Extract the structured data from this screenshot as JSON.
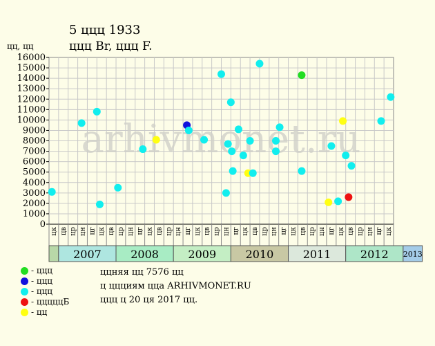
{
  "header": {
    "line1": "5 ццц 1933",
    "line2": "ццц Br, ццц F."
  },
  "watermark": "arhivmonet.ru",
  "legend": [
    {
      "label": "- ццц",
      "color": "#22dd22"
    },
    {
      "label": "- ццц",
      "color": "#1111dd"
    },
    {
      "label": "- ццц",
      "color": "#11eeee"
    },
    {
      "label": "- цццццБ",
      "color": "#ee1111"
    },
    {
      "label": "- цц",
      "color": "#ffff11"
    }
  ],
  "notes": [
    "ццняя цц 7576 цц",
    "ц ццциям ццa ARHIVMONET.RU",
    "ццц ц 20 ця 2017 цц."
  ],
  "chart_data": {
    "type": "scatter",
    "title": "5 ццц 1933",
    "subtitle": "ццц Br, ццц F.",
    "ylabel": "цц, цц",
    "ylim": [
      0,
      16000
    ],
    "yticks": [
      0,
      1000,
      2000,
      3000,
      4000,
      5000,
      6000,
      7000,
      8000,
      9000,
      10000,
      11000,
      12000,
      13000,
      14000,
      15000,
      16000
    ],
    "month_labels": [
      "цк",
      "цв",
      "цр",
      "цн",
      "цг",
      "цк",
      "цв",
      "цр",
      "цн",
      "цг",
      "цк",
      "цв",
      "цр",
      "цн",
      "цг",
      "цк",
      "цв",
      "цр",
      "цн",
      "цг",
      "цк",
      "цв",
      "цр",
      "цн",
      "цг",
      "цк",
      "цв",
      "цр",
      "цн",
      "цг",
      "цк",
      "цв",
      "цр",
      "цн",
      "цг",
      "цк"
    ],
    "years": [
      {
        "label": "",
        "span": 1,
        "color": "#b8d8a8"
      },
      {
        "label": "2007",
        "span": 6,
        "color": "#aee6e0"
      },
      {
        "label": "2008",
        "span": 6,
        "color": "#a8ecc4"
      },
      {
        "label": "2009",
        "span": 6,
        "color": "#c4eec4"
      },
      {
        "label": "2010",
        "span": 6,
        "color": "#c8c8a4"
      },
      {
        "label": "2011",
        "span": 6,
        "color": "#dce8dc"
      },
      {
        "label": "2012",
        "span": 6,
        "color": "#aee6c8"
      },
      {
        "label": "2013",
        "span": 2,
        "color": "#a4cce8"
      }
    ],
    "points": [
      {
        "x": 0.3,
        "y": 3100,
        "color": "#11eeee"
      },
      {
        "x": 3.4,
        "y": 9700,
        "color": "#11eeee"
      },
      {
        "x": 5.0,
        "y": 10800,
        "color": "#11eeee"
      },
      {
        "x": 5.3,
        "y": 1900,
        "color": "#11eeee"
      },
      {
        "x": 7.2,
        "y": 3500,
        "color": "#11eeee"
      },
      {
        "x": 9.8,
        "y": 7200,
        "color": "#11eeee"
      },
      {
        "x": 11.2,
        "y": 8100,
        "color": "#ffff11"
      },
      {
        "x": 14.4,
        "y": 9500,
        "color": "#1111dd"
      },
      {
        "x": 14.6,
        "y": 9000,
        "color": "#11eeee"
      },
      {
        "x": 16.2,
        "y": 8100,
        "color": "#11eeee"
      },
      {
        "x": 18.0,
        "y": 14400,
        "color": "#11eeee"
      },
      {
        "x": 18.5,
        "y": 3000,
        "color": "#11eeee"
      },
      {
        "x": 18.7,
        "y": 7700,
        "color": "#11eeee"
      },
      {
        "x": 19.0,
        "y": 11700,
        "color": "#11eeee"
      },
      {
        "x": 19.1,
        "y": 7000,
        "color": "#11eeee"
      },
      {
        "x": 19.2,
        "y": 5100,
        "color": "#11eeee"
      },
      {
        "x": 19.8,
        "y": 9100,
        "color": "#11eeee"
      },
      {
        "x": 20.3,
        "y": 6600,
        "color": "#11eeee"
      },
      {
        "x": 20.8,
        "y": 4900,
        "color": "#ffff11"
      },
      {
        "x": 21.0,
        "y": 8000,
        "color": "#11eeee"
      },
      {
        "x": 21.3,
        "y": 4900,
        "color": "#11eeee"
      },
      {
        "x": 22.0,
        "y": 15400,
        "color": "#11eeee"
      },
      {
        "x": 23.7,
        "y": 8000,
        "color": "#11eeee"
      },
      {
        "x": 23.7,
        "y": 7000,
        "color": "#11eeee"
      },
      {
        "x": 24.1,
        "y": 9300,
        "color": "#11eeee"
      },
      {
        "x": 26.4,
        "y": 14300,
        "color": "#22dd22"
      },
      {
        "x": 26.4,
        "y": 5100,
        "color": "#11eeee"
      },
      {
        "x": 29.2,
        "y": 2100,
        "color": "#ffff11"
      },
      {
        "x": 29.5,
        "y": 7500,
        "color": "#11eeee"
      },
      {
        "x": 30.2,
        "y": 2200,
        "color": "#11eeee"
      },
      {
        "x": 30.7,
        "y": 9900,
        "color": "#ffff11"
      },
      {
        "x": 31.0,
        "y": 6600,
        "color": "#11eeee"
      },
      {
        "x": 31.3,
        "y": 2600,
        "color": "#ee1111"
      },
      {
        "x": 31.6,
        "y": 5600,
        "color": "#11eeee"
      },
      {
        "x": 34.7,
        "y": 9900,
        "color": "#11eeee"
      },
      {
        "x": 35.7,
        "y": 12200,
        "color": "#11eeee"
      }
    ]
  }
}
